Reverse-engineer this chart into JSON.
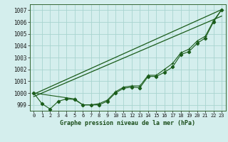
{
  "title": "Graphe pression niveau de la mer (hPa)",
  "bg_color": "#d4eeed",
  "grid_color": "#a8d4d0",
  "line_color": "#1a5c1a",
  "xlim": [
    -0.5,
    23.5
  ],
  "ylim": [
    998.5,
    1007.5
  ],
  "yticks": [
    999,
    1000,
    1001,
    1002,
    1003,
    1004,
    1005,
    1006,
    1007
  ],
  "x_labels": [
    "0",
    "1",
    "2",
    "3",
    "4",
    "5",
    "6",
    "7",
    "8",
    "9",
    "10",
    "11",
    "12",
    "13",
    "14",
    "15",
    "16",
    "17",
    "18",
    "19",
    "20",
    "21",
    "22",
    "23"
  ],
  "obs_x": [
    0,
    1,
    2,
    3,
    4,
    5,
    6,
    7,
    8,
    9,
    10,
    11,
    12,
    13,
    14,
    15,
    16,
    17,
    18,
    19,
    20,
    21,
    22,
    23
  ],
  "obs_y": [
    1000.0,
    999.1,
    998.65,
    999.3,
    999.5,
    999.45,
    999.0,
    999.0,
    999.0,
    999.3,
    1000.0,
    1000.4,
    1000.5,
    1000.45,
    1001.4,
    1001.4,
    1001.75,
    1002.2,
    1003.25,
    1003.5,
    1004.2,
    1004.65,
    1006.0,
    1007.05
  ],
  "line1_x": [
    0,
    23
  ],
  "line1_y": [
    999.9,
    1007.05
  ],
  "line2_x": [
    0,
    23
  ],
  "line2_y": [
    999.7,
    1006.5
  ],
  "line3_x": [
    0,
    5,
    6,
    7,
    8,
    9,
    10,
    11,
    12,
    13,
    14,
    15,
    16,
    17,
    18,
    19,
    20,
    21,
    22,
    23
  ],
  "line3_y": [
    1000.0,
    999.5,
    999.0,
    999.0,
    999.1,
    999.4,
    1000.1,
    1000.5,
    1000.6,
    1000.6,
    1001.5,
    1001.5,
    1002.0,
    1002.5,
    1003.4,
    1003.7,
    1004.4,
    1004.8,
    1006.1,
    1007.05
  ]
}
